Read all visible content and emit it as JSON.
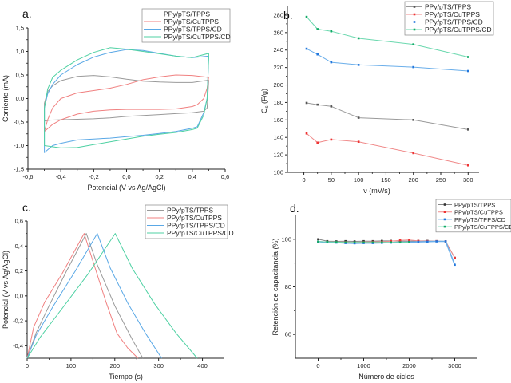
{
  "chart_data": [
    {
      "id": "a",
      "panel_label": "a.",
      "type": "line",
      "title": "",
      "xlabel": "Potencial (V vs Ag/AgCl)",
      "ylabel": "Corriente (mA)",
      "xlim": [
        -0.6,
        0.6
      ],
      "ylim": [
        -1.5,
        1.5
      ],
      "xticks": [
        "-0,6",
        "-0,4",
        "-0,2",
        "0,0",
        "0,2",
        "0,4",
        "0,6"
      ],
      "yticks": [
        "-1,5",
        "-1,0",
        "-0,5",
        "0,0",
        "0,5",
        "1,0",
        "1,5"
      ],
      "legend_position": "top-right",
      "series": [
        {
          "name": "PPy/pTS/TPPS",
          "color": "#9a9a9a",
          "x": [
            -0.5,
            -0.5,
            -0.48,
            -0.45,
            -0.4,
            -0.3,
            -0.2,
            -0.1,
            0.0,
            0.1,
            0.2,
            0.3,
            0.4,
            0.5,
            0.5,
            0.49,
            0.47,
            0.4,
            0.3,
            0.2,
            0.1,
            0.0,
            -0.1,
            -0.2,
            -0.3,
            -0.4,
            -0.47,
            -0.5
          ],
          "y": [
            -0.48,
            -0.1,
            0.15,
            0.27,
            0.38,
            0.47,
            0.49,
            0.46,
            0.41,
            0.37,
            0.35,
            0.34,
            0.34,
            0.39,
            0.38,
            -0.2,
            -0.27,
            -0.3,
            -0.32,
            -0.34,
            -0.36,
            -0.38,
            -0.41,
            -0.43,
            -0.44,
            -0.45,
            -0.46,
            -0.48
          ]
        },
        {
          "name": "PPy/pTS/CuTPPS",
          "color": "#f08080",
          "x": [
            -0.5,
            -0.48,
            -0.45,
            -0.4,
            -0.3,
            -0.2,
            -0.1,
            0.0,
            0.1,
            0.2,
            0.3,
            0.4,
            0.5,
            0.5,
            0.49,
            0.47,
            0.43,
            0.4,
            0.3,
            0.2,
            0.1,
            0.0,
            -0.1,
            -0.2,
            -0.3,
            -0.4,
            -0.45,
            -0.5
          ],
          "y": [
            -0.7,
            -0.45,
            -0.2,
            0.0,
            0.12,
            0.17,
            0.22,
            0.3,
            0.4,
            0.46,
            0.5,
            0.49,
            0.45,
            0.46,
            0.22,
            0.0,
            -0.13,
            -0.17,
            -0.22,
            -0.23,
            -0.23,
            -0.23,
            -0.24,
            -0.27,
            -0.33,
            -0.45,
            -0.55,
            -0.7
          ]
        },
        {
          "name": "PPy/pTS/TPPS/CD",
          "color": "#5aa8e6",
          "x": [
            -0.5,
            -0.5,
            -0.48,
            -0.45,
            -0.4,
            -0.3,
            -0.2,
            -0.1,
            0.0,
            0.1,
            0.2,
            0.3,
            0.4,
            0.5,
            0.5,
            0.49,
            0.47,
            0.43,
            0.4,
            0.3,
            0.2,
            0.1,
            0.0,
            -0.1,
            -0.2,
            -0.3,
            -0.4,
            -0.45,
            -0.5
          ],
          "y": [
            -1.15,
            -0.2,
            0.1,
            0.3,
            0.5,
            0.72,
            0.88,
            0.98,
            1.04,
            1.02,
            0.96,
            0.9,
            0.87,
            0.9,
            0.88,
            0.0,
            -0.3,
            -0.6,
            -0.63,
            -0.7,
            -0.74,
            -0.78,
            -0.81,
            -0.84,
            -0.86,
            -0.88,
            -0.95,
            -1.0,
            -1.15
          ]
        },
        {
          "name": "PPy/pTS/CuTPPS/CD",
          "color": "#4fd1a3",
          "x": [
            -0.5,
            -0.5,
            -0.48,
            -0.45,
            -0.4,
            -0.3,
            -0.2,
            -0.1,
            0.0,
            0.1,
            0.2,
            0.3,
            0.4,
            0.5,
            0.5,
            0.49,
            0.47,
            0.43,
            0.4,
            0.3,
            0.2,
            0.1,
            0.0,
            -0.1,
            -0.2,
            -0.3,
            -0.4,
            -0.5
          ],
          "y": [
            -1.0,
            -0.2,
            0.2,
            0.45,
            0.6,
            0.82,
            0.98,
            1.08,
            1.05,
            1.0,
            0.95,
            0.9,
            0.87,
            0.96,
            0.9,
            0.0,
            -0.35,
            -0.63,
            -0.66,
            -0.72,
            -0.76,
            -0.8,
            -0.86,
            -0.92,
            -0.98,
            -1.04,
            -1.05,
            -1.0
          ]
        }
      ]
    },
    {
      "id": "b",
      "panel_label": "b.",
      "type": "line",
      "title": "",
      "xlabel": "ν (mV/s)",
      "ylabel": "Cs (F/g)",
      "ylabel_main": "C",
      "ylabel_sub": "s",
      "ylabel_rest": " (F/g)",
      "xlim": [
        -30,
        320
      ],
      "ylim": [
        100,
        290
      ],
      "xticks": [
        "0",
        "50",
        "100",
        "150",
        "200",
        "250",
        "300"
      ],
      "xtick_values": [
        0,
        50,
        100,
        150,
        200,
        250,
        300
      ],
      "yticks": [
        "100",
        "120",
        "140",
        "160",
        "180",
        "200",
        "220",
        "240",
        "260",
        "280"
      ],
      "ytick_values": [
        100,
        120,
        140,
        160,
        180,
        200,
        220,
        240,
        260,
        280
      ],
      "legend_position": "top-right",
      "x": [
        5,
        25,
        50,
        100,
        200,
        300
      ],
      "series": [
        {
          "name": "PPy/pTS/TPPS",
          "color": "#555555",
          "line_color": "#9a9a9a",
          "values": [
            179.5,
            177.5,
            175.5,
            162.5,
            160,
            149
          ]
        },
        {
          "name": "PPy/pTS/CuTPPS",
          "color": "#ee3333",
          "line_color": "#f08a8a",
          "values": [
            144.5,
            134,
            137.5,
            135,
            122,
            108
          ]
        },
        {
          "name": "PPy/pTS/TPPS/CD",
          "color": "#2277dd",
          "line_color": "#6aaeea",
          "values": [
            241.5,
            235,
            226,
            223,
            220.5,
            216
          ]
        },
        {
          "name": "PPy/pTS/CuTPPS/CD",
          "color": "#11aa66",
          "line_color": "#6ad8ae",
          "values": [
            278,
            264,
            261.5,
            253.5,
            246.5,
            232
          ]
        }
      ]
    },
    {
      "id": "c",
      "panel_label": "c.",
      "type": "line",
      "title": "",
      "xlabel": "Tiempo (s)",
      "ylabel": "Potencial (V vs Ag/AgCl)",
      "xlim": [
        0,
        450
      ],
      "ylim": [
        -0.5,
        0.6
      ],
      "xticks": [
        "0",
        "100",
        "200",
        "300",
        "400"
      ],
      "xtick_values": [
        0,
        100,
        200,
        300,
        400
      ],
      "yticks": [
        "-0,4",
        "-0,2",
        "0,0",
        "0,2",
        "0,4",
        "0,6"
      ],
      "ytick_values": [
        -0.4,
        -0.2,
        0.0,
        0.2,
        0.4,
        0.6
      ],
      "legend_position": "top-right",
      "series": [
        {
          "name": "PPy/pTS/TPPS",
          "color": "#9a9a9a",
          "x": [
            0,
            20,
            50,
            90,
            135,
            160,
            200,
            240,
            264
          ],
          "y": [
            -0.5,
            -0.3,
            -0.08,
            0.2,
            0.5,
            0.25,
            -0.08,
            -0.35,
            -0.5
          ]
        },
        {
          "name": "PPy/pTS/CuTPPS",
          "color": "#f08080",
          "x": [
            0,
            15,
            40,
            80,
            130,
            150,
            180,
            205,
            230,
            253
          ],
          "y": [
            -0.5,
            -0.25,
            -0.05,
            0.18,
            0.5,
            0.28,
            -0.05,
            -0.3,
            -0.42,
            -0.5
          ]
        },
        {
          "name": "PPy/pTS/TPPS/CD",
          "color": "#5aa8e6",
          "x": [
            0,
            20,
            60,
            110,
            160,
            190,
            230,
            270,
            307
          ],
          "y": [
            -0.5,
            -0.32,
            -0.08,
            0.2,
            0.5,
            0.22,
            -0.06,
            -0.3,
            -0.5
          ]
        },
        {
          "name": "PPy/pTS/CuTPPS/CD",
          "color": "#4fd1a3",
          "x": [
            0,
            30,
            80,
            140,
            201,
            240,
            290,
            340,
            388
          ],
          "y": [
            -0.5,
            -0.33,
            -0.1,
            0.18,
            0.5,
            0.22,
            -0.06,
            -0.3,
            -0.5
          ]
        }
      ]
    },
    {
      "id": "d",
      "panel_label": "d.",
      "type": "line",
      "title": "",
      "xlabel": "Número de ciclos",
      "ylabel": "Retención de capacitancia (%)",
      "xlim": [
        -500,
        3500
      ],
      "ylim": [
        50,
        110
      ],
      "xticks": [
        "0",
        "1000",
        "2000",
        "3000"
      ],
      "xtick_values": [
        0,
        1000,
        2000,
        3000
      ],
      "yticks": [
        "60",
        "80",
        "100"
      ],
      "ytick_values": [
        60,
        80,
        100
      ],
      "legend_position": "top-right",
      "series": [
        {
          "name": "PPy/pTS/TPPS",
          "color": "#333333",
          "line_color": "#888888",
          "x": [
            0,
            200,
            400,
            600,
            800,
            1000,
            1200,
            1400,
            1600,
            1800,
            2000,
            2200,
            2400,
            2600,
            2800,
            3000
          ],
          "y": [
            100,
            99.2,
            99.1,
            99.2,
            99.1,
            99.2,
            99.2,
            99.3,
            99.3,
            99.2,
            99.2,
            99.3,
            99.3,
            99.2,
            99.1,
            92.2
          ]
        },
        {
          "name": "PPy/pTS/CuTPPS",
          "color": "#ee3333",
          "line_color": "#f08a8a",
          "x": [
            0,
            200,
            400,
            600,
            800,
            1000,
            1200,
            1400,
            1600,
            1800,
            2000,
            2200,
            2400,
            2600,
            2800,
            3000
          ],
          "y": [
            99,
            98.9,
            98.8,
            98.8,
            98.7,
            98.8,
            98.9,
            98.9,
            99.2,
            99.5,
            99.7,
            99.3,
            99.2,
            99.2,
            99.1,
            92.2
          ]
        },
        {
          "name": "PPy/pTS/TPPS/CD",
          "color": "#2277dd",
          "line_color": "#6aaeea",
          "x": [
            0,
            200,
            400,
            600,
            800,
            1000,
            1200,
            1400,
            1600,
            1800,
            2000,
            2200,
            2400,
            2600,
            2800,
            3000
          ],
          "y": [
            99,
            98.7,
            98.6,
            98.4,
            98.3,
            98.4,
            98.4,
            98.5,
            98.6,
            98.7,
            98.8,
            98.9,
            99,
            99.1,
            99.1,
            89.3
          ]
        },
        {
          "name": "PPy/pTS/CuTPPS/CD",
          "color": "#11aa66",
          "line_color": "#6ad8ae",
          "x": [
            0,
            200,
            400,
            600,
            800,
            1000,
            1200,
            1400,
            1600,
            1800,
            2000
          ],
          "y": [
            99,
            98.9,
            98.8,
            98.7,
            98.7,
            98.7,
            98.7,
            98.7,
            98.7,
            98.7,
            98.8
          ]
        }
      ]
    }
  ]
}
